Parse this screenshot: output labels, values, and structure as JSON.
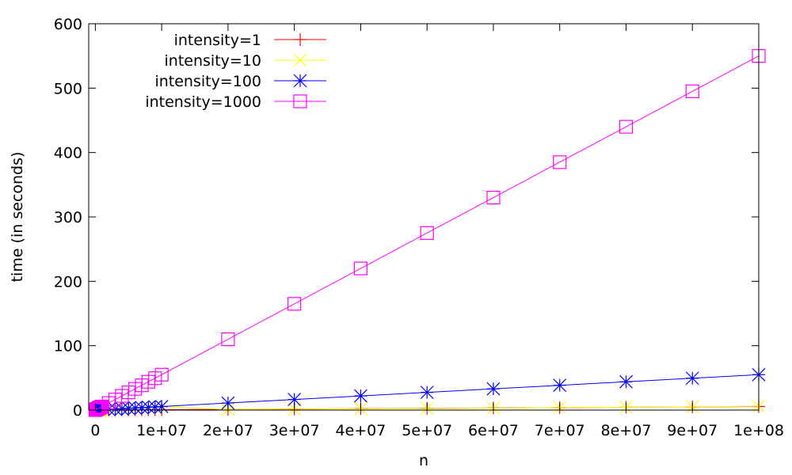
{
  "chart_data": {
    "type": "line",
    "title": "",
    "xlabel": "n",
    "ylabel": "time (in seconds)",
    "xlim": [
      -1000000,
      100000000
    ],
    "ylim": [
      0,
      600
    ],
    "grid": false,
    "legend_position": "top-left",
    "xticks": [
      {
        "value": 0,
        "label": "0"
      },
      {
        "value": 10000000,
        "label": "1e+07"
      },
      {
        "value": 20000000,
        "label": "2e+07"
      },
      {
        "value": 30000000,
        "label": "3e+07"
      },
      {
        "value": 40000000,
        "label": "4e+07"
      },
      {
        "value": 50000000,
        "label": "5e+07"
      },
      {
        "value": 60000000,
        "label": "6e+07"
      },
      {
        "value": 70000000,
        "label": "7e+07"
      },
      {
        "value": 80000000,
        "label": "8e+07"
      },
      {
        "value": 90000000,
        "label": "9e+07"
      },
      {
        "value": 100000000,
        "label": "1e+08"
      }
    ],
    "yticks": [
      {
        "value": 0,
        "label": "0"
      },
      {
        "value": 100,
        "label": "100"
      },
      {
        "value": 200,
        "label": "200"
      },
      {
        "value": 300,
        "label": "300"
      },
      {
        "value": 400,
        "label": "400"
      },
      {
        "value": 500,
        "label": "500"
      },
      {
        "value": 600,
        "label": "600"
      }
    ],
    "x": [
      0,
      100000,
      200000,
      300000,
      400000,
      500000,
      600000,
      700000,
      800000,
      900000,
      1000000,
      2000000,
      3000000,
      4000000,
      5000000,
      6000000,
      7000000,
      8000000,
      9000000,
      10000000,
      20000000,
      30000000,
      40000000,
      50000000,
      60000000,
      70000000,
      80000000,
      90000000,
      100000000
    ],
    "series": [
      {
        "name": "intensity=1",
        "color": "#ff0000",
        "marker": "plus",
        "values": [
          0,
          0.01,
          0.01,
          0.02,
          0.02,
          0.03,
          0.03,
          0.04,
          0.04,
          0.05,
          0.06,
          0.11,
          0.17,
          0.22,
          0.28,
          0.33,
          0.39,
          0.44,
          0.5,
          0.55,
          1.1,
          1.65,
          2.2,
          2.75,
          3.3,
          3.85,
          4.4,
          4.95,
          5.5
        ]
      },
      {
        "name": "intensity=10",
        "color": "#ffff00",
        "marker": "x",
        "values": [
          0,
          0.06,
          0.11,
          0.17,
          0.22,
          0.28,
          0.33,
          0.39,
          0.44,
          0.5,
          0.55,
          1.1,
          1.65,
          2.2,
          2.75,
          3.3,
          3.85,
          4.4,
          4.95,
          5.5,
          1,
          1.5,
          2,
          2.5,
          3,
          4,
          4.5,
          5,
          6
        ]
      },
      {
        "name": "intensity=100",
        "color": "#0000ff",
        "marker": "star",
        "values": [
          0,
          0.55,
          1.1,
          1.65,
          2.2,
          2.75,
          3.3,
          3.85,
          4.4,
          4.95,
          5.5,
          1.1,
          1.65,
          2.2,
          2.75,
          3.3,
          3.85,
          4.4,
          4.95,
          5.5,
          11,
          16.5,
          22,
          27.5,
          33,
          38.5,
          44,
          49.5,
          55
        ]
      },
      {
        "name": "intensity=1000",
        "color": "#ff00ff",
        "marker": "square",
        "values": [
          0,
          1,
          1.5,
          2,
          2.5,
          3,
          3.5,
          4,
          4.5,
          5,
          5.5,
          11,
          16.5,
          22,
          27.5,
          33,
          38.5,
          44,
          49.5,
          55,
          110,
          165,
          220,
          275,
          330,
          385,
          440,
          495,
          550
        ]
      }
    ]
  }
}
